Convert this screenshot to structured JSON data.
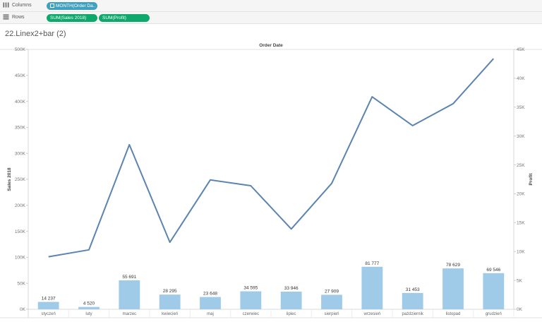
{
  "shelves": {
    "columns_label": "Columns",
    "rows_label": "Rows",
    "columns_pills": [
      {
        "text": "MONTH(Order Da..",
        "color": "#3fa0bf"
      }
    ],
    "rows_pills": [
      {
        "text": "SUM(Sales 2018)",
        "color": "#0fa86c"
      },
      {
        "text": "SUM(Profit)",
        "color": "#0fa86c"
      }
    ]
  },
  "sheet_title": "22.Linex2+bar (2)",
  "chart_data": {
    "type": "bar",
    "title": "Order Date",
    "categories": [
      "styczeń",
      "luty",
      "marzec",
      "kwiecień",
      "maj",
      "czerwiec",
      "lipiec",
      "sierpień",
      "wrzesień",
      "październik",
      "listopad",
      "grudzień"
    ],
    "series": [
      {
        "name": "Sales 2018",
        "mark": "bar",
        "axis": "left",
        "values": [
          14237,
          4520,
          55691,
          28295,
          23648,
          34595,
          33946,
          27909,
          81777,
          31453,
          78629,
          69546
        ],
        "labels": [
          "14 237",
          "4 520",
          "55 691",
          "28 295",
          "23 648",
          "34 595",
          "33 946",
          "27 909",
          "81 777",
          "31 453",
          "78 629",
          "69 546"
        ],
        "color": "#a0cbe8"
      },
      {
        "name": "Profit",
        "mark": "line",
        "axis": "right",
        "values": [
          9100,
          10300,
          28500,
          11600,
          22400,
          21400,
          13900,
          21800,
          36800,
          31800,
          35600,
          43400
        ],
        "color": "#5b84b1"
      }
    ],
    "y_left": {
      "label": "Sales 2018",
      "ticks": [
        0,
        50000,
        100000,
        150000,
        200000,
        250000,
        300000,
        350000,
        400000,
        450000,
        500000
      ],
      "tick_labels": [
        "0K",
        "50K",
        "100K",
        "150K",
        "200K",
        "250K",
        "300K",
        "350K",
        "400K",
        "450K",
        "500K"
      ],
      "ylim": [
        0,
        500000
      ]
    },
    "y_right": {
      "label": "Profit",
      "ticks": [
        0,
        5000,
        10000,
        15000,
        20000,
        25000,
        30000,
        35000,
        40000,
        45000
      ],
      "tick_labels": [
        "0K",
        "5K",
        "10K",
        "15K",
        "20K",
        "25K",
        "30K",
        "35K",
        "40K",
        "45K"
      ],
      "ylim": [
        0,
        45000
      ]
    },
    "grid": false
  }
}
